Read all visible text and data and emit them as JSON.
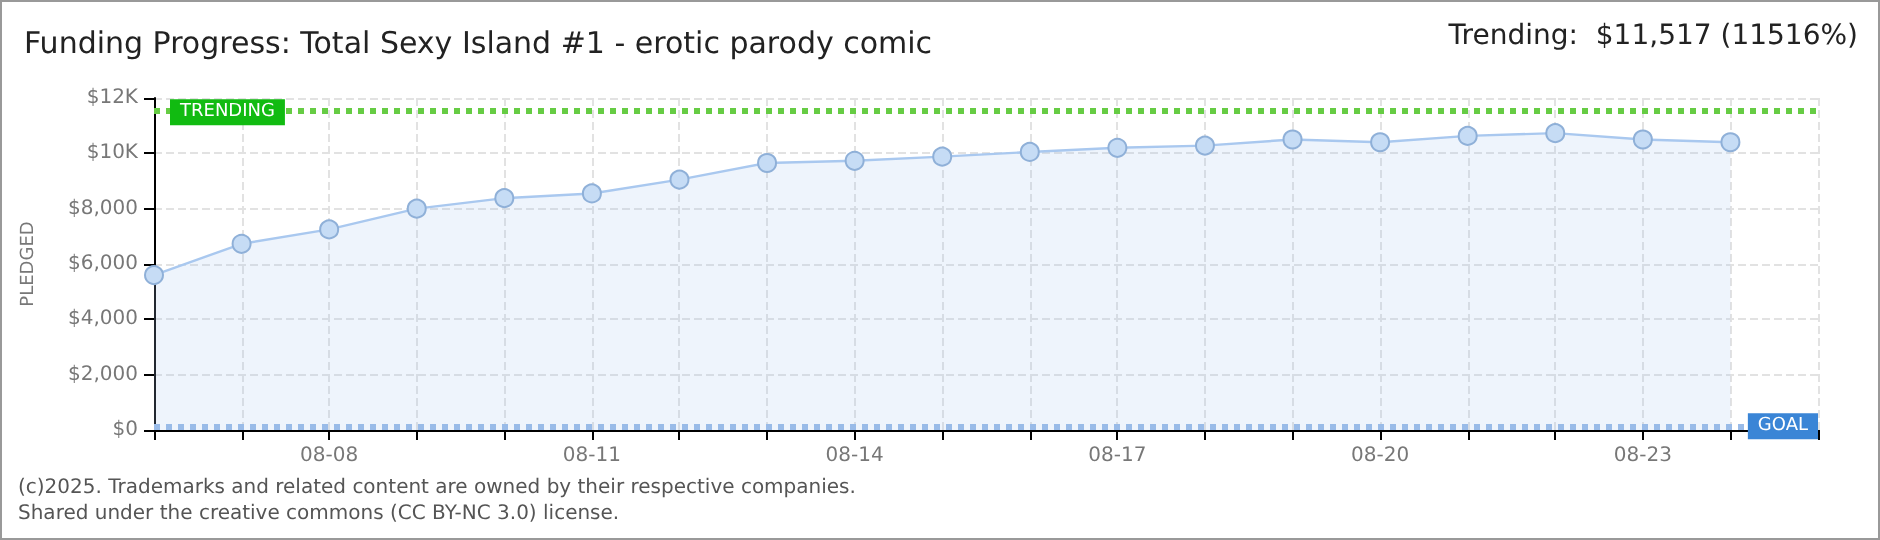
{
  "chart_data": {
    "type": "area",
    "title": "Funding Progress: Total Sexy Island #1 - erotic parody comic",
    "ylabel": "PLEDGED",
    "annotations": [
      "Trending:  $11,517 (11516%)",
      "(c)2025. Trademarks and related content are owned by their respective companies.",
      "Shared under the creative commons (CC BY-NC 3.0) license."
    ],
    "x": [
      "--08-06",
      "--08-07",
      "--08-08",
      "--08-09",
      "--08-10",
      "--08-11",
      "--08-12",
      "--08-13",
      "--08-14",
      "--08-15",
      "--08-16",
      "--08-17",
      "--08-18",
      "--08-19",
      "--08-20",
      "--08-21",
      "--08-22",
      "--08-23",
      "--08-24"
    ],
    "series": [
      {
        "color": "#a9c8ef",
        "values": [
          5600,
          6730,
          7250,
          8000,
          8380,
          8550,
          9050,
          9650,
          9730,
          9880,
          10050,
          10200,
          10280,
          10500,
          10400,
          10630,
          10730,
          10500,
          10400
        ]
      }
    ],
    "xlim": [
      "--08-06",
      "--08-25"
    ],
    "xticks": [
      {
        "value": "--08-06",
        "label": null
      },
      {
        "value": "--08-07",
        "label": null
      },
      {
        "value": "--08-08",
        "label": "08-08"
      },
      {
        "value": "--08-09",
        "label": null
      },
      {
        "value": "--08-10",
        "label": null
      },
      {
        "value": "--08-11",
        "label": "08-11"
      },
      {
        "value": "--08-12",
        "label": null
      },
      {
        "value": "--08-13",
        "label": null
      },
      {
        "value": "--08-14",
        "label": "08-14"
      },
      {
        "value": "--08-15",
        "label": null
      },
      {
        "value": "--08-16",
        "label": null
      },
      {
        "value": "--08-17",
        "label": "08-17"
      },
      {
        "value": "--08-18",
        "label": null
      },
      {
        "value": "--08-19",
        "label": null
      },
      {
        "value": "--08-20",
        "label": "08-20"
      },
      {
        "value": "--08-21",
        "label": null
      },
      {
        "value": "--08-22",
        "label": null
      },
      {
        "value": "--08-23",
        "label": "08-23"
      },
      {
        "value": "--08-24",
        "label": null
      },
      {
        "value": "--08-25",
        "label": null
      }
    ],
    "ylim": [
      0,
      12000
    ],
    "yticks": [
      {
        "value": 0,
        "label": "$0"
      },
      {
        "value": 2000,
        "label": "$2,000"
      },
      {
        "value": 4000,
        "label": "$4,000"
      },
      {
        "value": 6000,
        "label": "$6,000"
      },
      {
        "value": 8000,
        "label": "$8,000"
      },
      {
        "value": 10000,
        "label": "$10K"
      },
      {
        "value": 12000,
        "label": "$12K"
      }
    ],
    "ref_lines": [
      {
        "axis": "y",
        "value": 11517,
        "label": "TRENDING",
        "color": "#66cc44",
        "line_style": "dotted"
      },
      {
        "axis": "y",
        "value": 100,
        "label": "GOAL",
        "color": "#99bbe8",
        "line_style": "dotted"
      }
    ],
    "grid": true,
    "marker": "circle",
    "line_style": "solid"
  }
}
